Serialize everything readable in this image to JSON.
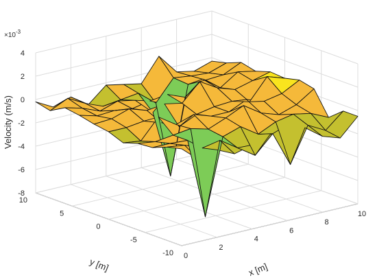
{
  "chart_data": {
    "type": "surface",
    "xlabel": "x [m]",
    "ylabel": "y [m]",
    "zlabel": "Velocity (m/s)",
    "z_multiplier": "×10",
    "z_multiplier_exponent": "-3",
    "xlim": [
      0,
      10
    ],
    "ylim": [
      -10,
      10
    ],
    "zlim": [
      -8,
      4
    ],
    "xticks": [
      "0",
      "2",
      "4",
      "6",
      "8",
      "10"
    ],
    "yticks": [
      "-10",
      "-5",
      "0",
      "5",
      "10"
    ],
    "zticks": [
      "-8",
      "-6",
      "-4",
      "-2",
      "0",
      "2",
      "4"
    ],
    "grid": true,
    "colormap": [
      "#3e26a8",
      "#2f6ff0",
      "#1ca9d7",
      "#2fc6a5",
      "#7dcc57",
      "#c4c02f",
      "#f5b93a",
      "#f9e41e"
    ],
    "x": [
      0,
      1,
      2,
      3,
      4,
      5,
      6,
      7,
      8,
      9,
      10
    ],
    "y": [
      -10,
      -8,
      -6,
      -4,
      -2,
      0,
      2,
      4,
      6,
      8,
      10
    ],
    "z": [
      [
        0.3,
        -1.0,
        -0.5,
        -1.2,
        -0.8,
        -0.3,
        0.2,
        -0.4,
        -1.5,
        -2.0,
        -0.5
      ],
      [
        0.0,
        -0.2,
        -0.8,
        -0.5,
        -1.5,
        -2.5,
        -1.0,
        -4.0,
        -1.0,
        -1.8,
        -0.5
      ],
      [
        -0.5,
        -0.5,
        -0.6,
        -7.5,
        -1.0,
        -0.5,
        -1.5,
        -0.8,
        -0.5,
        -0.8,
        -1.5
      ],
      [
        -0.6,
        -0.8,
        -0.6,
        -0.4,
        -0.8,
        -0.2,
        0.5,
        -0.5,
        -1.0,
        -0.5,
        0.5
      ],
      [
        -1.0,
        -1.2,
        0.5,
        -0.5,
        0.0,
        -0.5,
        -0.5,
        0.2,
        -0.3,
        0.0,
        0.8
      ],
      [
        -0.5,
        -0.5,
        -0.3,
        -0.8,
        -1.5,
        -0.8,
        -0.5,
        -0.4,
        -0.8,
        1.0,
        0.5
      ],
      [
        -0.3,
        -0.2,
        0.3,
        -0.2,
        0.0,
        -0.3,
        1.2,
        0.3,
        -0.2,
        0.2,
        0.6
      ],
      [
        0.0,
        -0.4,
        -0.3,
        -0.5,
        -0.2,
        0.0,
        -0.6,
        0.6,
        -0.5,
        0.5,
        0.2
      ],
      [
        0.2,
        -0.2,
        -0.8,
        -0.3,
        -0.6,
        -2.0,
        -7.8,
        -0.3,
        -0.3,
        -0.2,
        0.5
      ],
      [
        -0.5,
        0.2,
        -0.6,
        -1.2,
        -1.0,
        -0.8,
        -2.0,
        -0.2,
        -0.4,
        -0.5,
        0.0
      ],
      [
        -0.2,
        -1.0,
        -0.5,
        -1.5,
        -0.2,
        -0.5,
        -0.8,
        1.2,
        -0.5,
        -0.8,
        -0.3
      ]
    ]
  }
}
